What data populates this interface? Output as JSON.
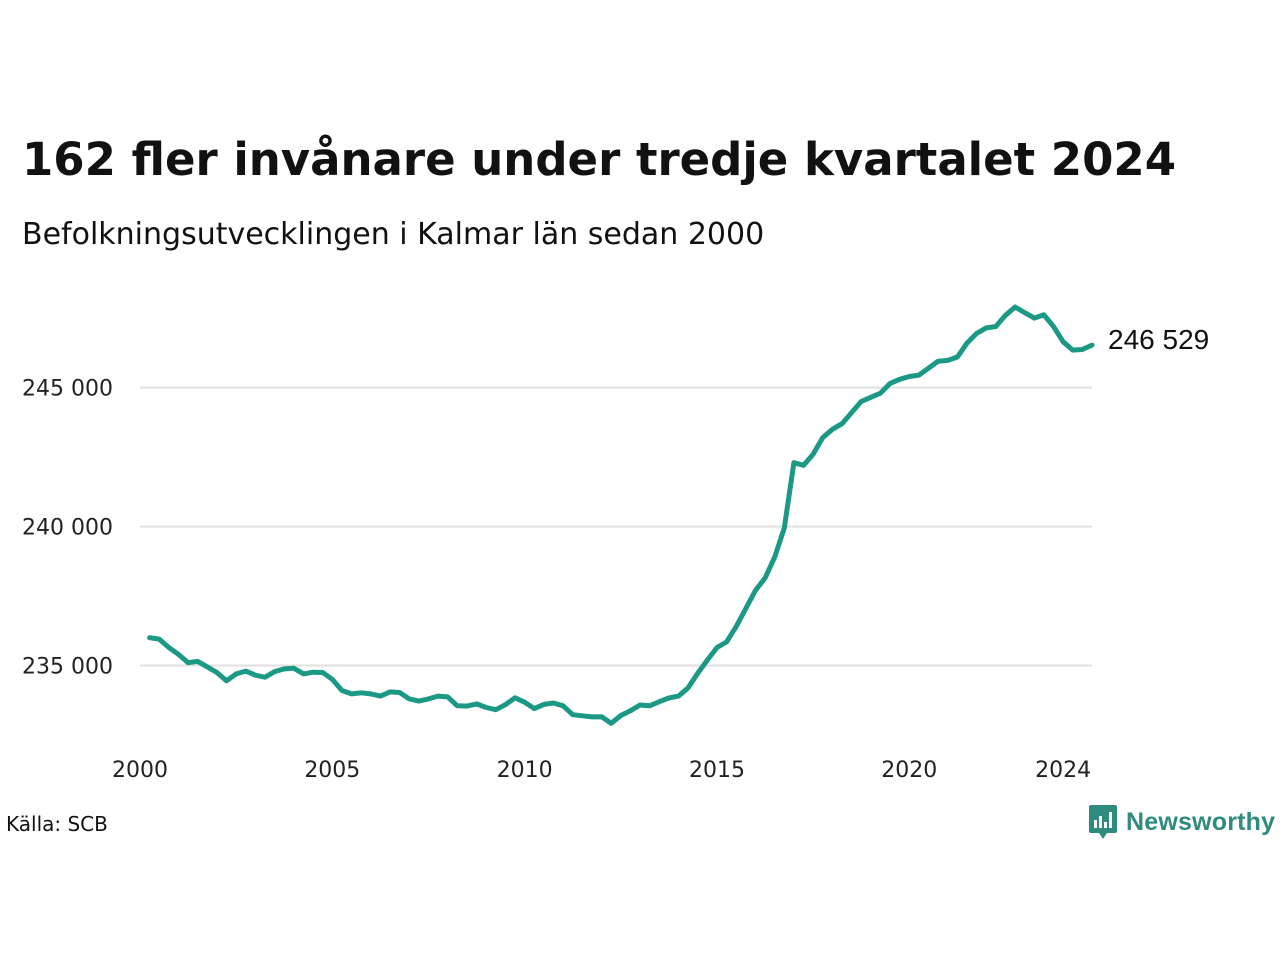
{
  "title": "162 fler invånare under tredje kvartalet 2024",
  "subtitle": "Befolkningsutvecklingen i Kalmar län sedan 2000",
  "source": "Källa: SCB",
  "brand": {
    "name": "Newsworthy",
    "icon": "newsworthy-logo-icon",
    "color": "#2e8b7d"
  },
  "chart_data": {
    "type": "line",
    "line_color": "#1b9985",
    "grid": true,
    "x_ticks": [
      2000,
      2005,
      2010,
      2015,
      2020,
      2024
    ],
    "y_ticks": [
      235000,
      240000,
      245000
    ],
    "y_tick_labels": [
      "235 000",
      "240 000",
      "245 000"
    ],
    "xlim": [
      2000,
      2024.75
    ],
    "ylim": [
      232500,
      248800
    ],
    "end_label": "246 529",
    "series": [
      {
        "x": [
          2000.25,
          2000.5,
          2000.75,
          2001,
          2001.25,
          2001.5,
          2001.75,
          2002,
          2002.25,
          2002.5,
          2002.75,
          2003,
          2003.25,
          2003.5,
          2003.75,
          2004,
          2004.25,
          2004.5,
          2004.75,
          2005,
          2005.25,
          2005.5,
          2005.75,
          2006,
          2006.25,
          2006.5,
          2006.75,
          2007,
          2007.25,
          2007.5,
          2007.75,
          2008,
          2008.25,
          2008.5,
          2008.75,
          2009,
          2009.25,
          2009.5,
          2009.75,
          2010,
          2010.25,
          2010.5,
          2010.75,
          2011,
          2011.25,
          2011.5,
          2011.75,
          2012,
          2012.25,
          2012.5,
          2012.75,
          2013,
          2013.25,
          2013.5,
          2013.75,
          2014,
          2014.25,
          2014.5,
          2014.75,
          2015,
          2015.25,
          2015.5,
          2015.75,
          2016,
          2016.25,
          2016.5,
          2016.75,
          2017,
          2017.25,
          2017.5,
          2017.75,
          2018,
          2018.25,
          2018.5,
          2018.75,
          2019,
          2019.25,
          2019.5,
          2019.75,
          2020,
          2020.25,
          2020.5,
          2020.75,
          2021,
          2021.25,
          2021.5,
          2021.75,
          2022,
          2022.25,
          2022.5,
          2022.75,
          2023,
          2023.25,
          2023.5,
          2023.75,
          2024,
          2024.25,
          2024.5,
          2024.75
        ],
        "values": [
          236000,
          235950,
          235650,
          235400,
          235100,
          235150,
          234950,
          234750,
          234450,
          234700,
          234800,
          234650,
          234580,
          234780,
          234880,
          234900,
          234700,
          234760,
          234750,
          234500,
          234100,
          233980,
          234020,
          233980,
          233900,
          234050,
          234030,
          233800,
          233720,
          233800,
          233900,
          233870,
          233550,
          233540,
          233620,
          233490,
          233410,
          233590,
          233840,
          233680,
          233450,
          233600,
          233650,
          233550,
          233230,
          233190,
          233150,
          233160,
          232920,
          233200,
          233370,
          233580,
          233550,
          233700,
          233830,
          233900,
          234200,
          234720,
          235200,
          235650,
          235850,
          236400,
          237050,
          237700,
          238150,
          238900,
          239950,
          242300,
          242200,
          242600,
          243200,
          243500,
          243700,
          244100,
          244500,
          244650,
          244800,
          245150,
          245300,
          245400,
          245450,
          245700,
          245950,
          245980,
          246100,
          246600,
          246950,
          247150,
          247200,
          247600,
          247900,
          247700,
          247500,
          247620,
          247200,
          246650,
          246350,
          246370,
          246529
        ]
      }
    ]
  }
}
